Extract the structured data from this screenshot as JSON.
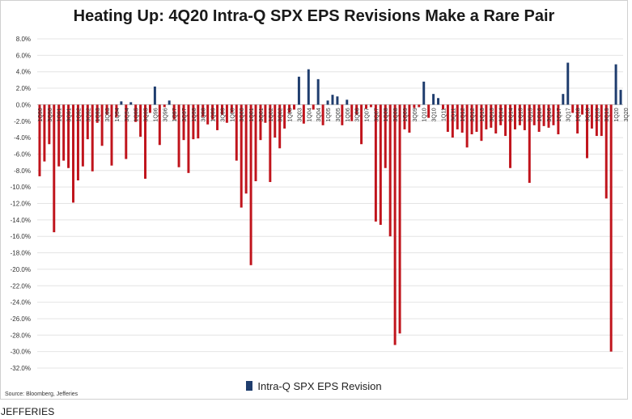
{
  "chart_data": {
    "type": "bar",
    "title": "Heating Up: 4Q20 Intra-Q SPX EPS Revisions Make a Rare Pair",
    "ylim": [
      -32,
      8
    ],
    "yticks": [
      "8.0%",
      "6.0%",
      "4.0%",
      "2.0%",
      "0.0%",
      "-2.0%",
      "-4.0%",
      "-6.0%",
      "-8.0%",
      "-10.0%",
      "-12.0%",
      "-14.0%",
      "-16.0%",
      "-18.0%",
      "-20.0%",
      "-22.0%",
      "-24.0%",
      "-26.0%",
      "-28.0%",
      "-30.0%",
      "-32.0%"
    ],
    "grid": true,
    "legend_position": "bottom-center",
    "x_tick_labels": [
      "1Q90",
      "3Q90",
      "1Q91",
      "3Q91",
      "1Q92",
      "3Q92",
      "1Q93",
      "3Q93",
      "1Q94",
      "3Q94",
      "1Q95",
      "3Q95",
      "1Q96",
      "3Q96",
      "1Q97",
      "3Q97",
      "1Q98",
      "3Q98",
      "1Q99",
      "3Q99",
      "1Q00",
      "3Q00",
      "1Q01",
      "3Q01",
      "1Q02",
      "3Q02",
      "1Q03",
      "3Q03",
      "1Q04",
      "3Q04",
      "1Q05",
      "3Q05",
      "1Q06",
      "3Q06",
      "1Q07",
      "3Q07",
      "1Q08",
      "3Q08",
      "1Q09",
      "3Q09",
      "1Q10",
      "3Q10",
      "1Q11",
      "3Q11",
      "1Q12",
      "3Q12",
      "1Q13",
      "3Q13",
      "1Q14",
      "3Q14",
      "1Q15",
      "3Q15",
      "1Q16",
      "3Q16",
      "1Q17",
      "3Q17",
      "1Q18",
      "3Q18",
      "1Q19",
      "3Q19",
      "1Q20",
      "3Q20"
    ],
    "series": [
      {
        "name": "Intra-Q SPX EPS Revision",
        "values": [
          -8.7,
          -6.9,
          -4.8,
          -15.5,
          -7.5,
          -6.8,
          -7.7,
          -11.9,
          -9.2,
          -7.5,
          -4.2,
          -8.1,
          -2.2,
          -5.0,
          -1.2,
          -7.4,
          -1.5,
          0.4,
          -6.6,
          0.3,
          -2.1,
          -3.9,
          -9.0,
          -1.0,
          2.2,
          -4.9,
          -0.3,
          0.5,
          -1.8,
          -7.6,
          -4.3,
          -8.3,
          -4.2,
          -4.1,
          -1.5,
          -2.4,
          -1.8,
          -3.1,
          -1.2,
          -2.2,
          -1.0,
          -6.8,
          -12.5,
          -10.8,
          -19.5,
          -9.3,
          -4.3,
          -2.2,
          -9.4,
          -4.0,
          -5.3,
          -2.9,
          -1.0,
          -0.6,
          3.4,
          -2.3,
          4.3,
          -0.6,
          3.1,
          -2.5,
          0.5,
          1.2,
          1.0,
          -2.5,
          0.6,
          -2.0,
          -1.2,
          -4.8,
          -0.5,
          -0.3,
          -14.2,
          -14.6,
          -7.7,
          -16.0,
          -29.2,
          -27.8,
          -3.0,
          -3.4,
          -0.4,
          -0.3,
          2.8,
          -1.6,
          1.3,
          0.8,
          -0.6,
          -3.3,
          -4.0,
          -3.0,
          -3.4,
          -5.2,
          -3.6,
          -3.3,
          -4.4,
          -3.0,
          -2.8,
          -3.5,
          -2.5,
          -3.8,
          -7.7,
          -3.0,
          -2.5,
          -3.1,
          -9.5,
          -2.5,
          -3.3,
          -2.6,
          -2.8,
          -2.5,
          -3.6,
          1.3,
          5.1,
          -1.0,
          -3.5,
          -1.2,
          -6.5,
          -2.9,
          -3.8,
          -3.8,
          -11.4,
          -30.0,
          4.9,
          1.8
        ]
      }
    ],
    "colors": {
      "negative": "#c0141c",
      "positive": "#1f3d6e",
      "grid": "#e4e4e4",
      "zero_line": "#bfbfbf"
    }
  },
  "legend": {
    "label": "Intra-Q SPX EPS Revision"
  },
  "source": "Source: Bloomberg, Jefferies",
  "footer": "JEFFERIES"
}
